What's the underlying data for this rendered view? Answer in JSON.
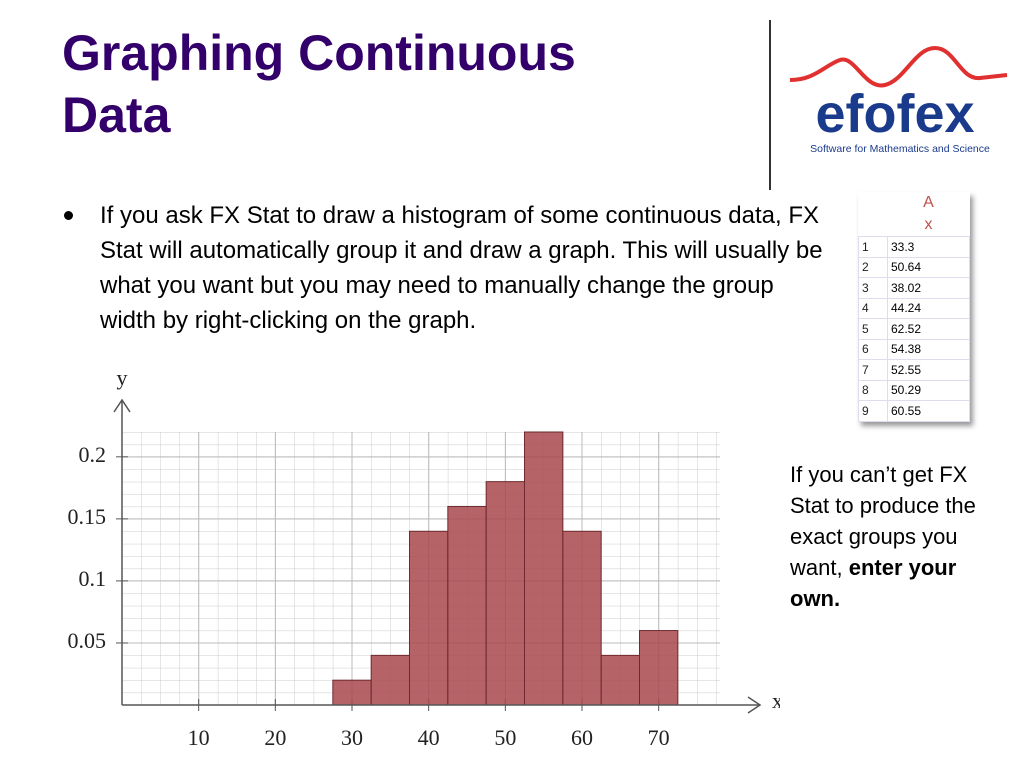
{
  "title": "Graphing Continuous Data",
  "bullet": "If you ask FX Stat to draw a histogram of some continuous data, FX Stat will automatically group it and draw a graph.  This will usually be what you want but you may need to manually change the group width by right-clicking on the graph.",
  "logo": {
    "name": "efofex",
    "tagline": "Software for Mathematics and Science"
  },
  "spreadsheet": {
    "header": [
      "A",
      "x"
    ],
    "rows": [
      [
        1,
        33.3
      ],
      [
        2,
        50.64
      ],
      [
        3,
        38.02
      ],
      [
        4,
        44.24
      ],
      [
        5,
        62.52
      ],
      [
        6,
        54.38
      ],
      [
        7,
        52.55
      ],
      [
        8,
        50.29
      ],
      [
        9,
        60.55
      ]
    ]
  },
  "note": {
    "text": "If you can’t get FX Stat to produce the exact groups you want, ",
    "emphasis": "enter your own."
  },
  "chart_data": {
    "type": "histogram",
    "x_label": "x",
    "y_label": "y",
    "bins": [
      27.5,
      32.5,
      37.5,
      42.5,
      47.5,
      52.5,
      57.5,
      62.5,
      67.5,
      72.5
    ],
    "values": [
      0.02,
      0.04,
      0.14,
      0.16,
      0.18,
      0.22,
      0.14,
      0.04,
      0.06
    ],
    "color": "#a9484e",
    "xlim": [
      0,
      78
    ],
    "ylim": [
      0,
      0.22
    ],
    "xticks": [
      10,
      20,
      30,
      40,
      50,
      60,
      70
    ],
    "yticks": [
      0.05,
      0.1,
      0.15,
      0.2
    ],
    "grid": true
  }
}
